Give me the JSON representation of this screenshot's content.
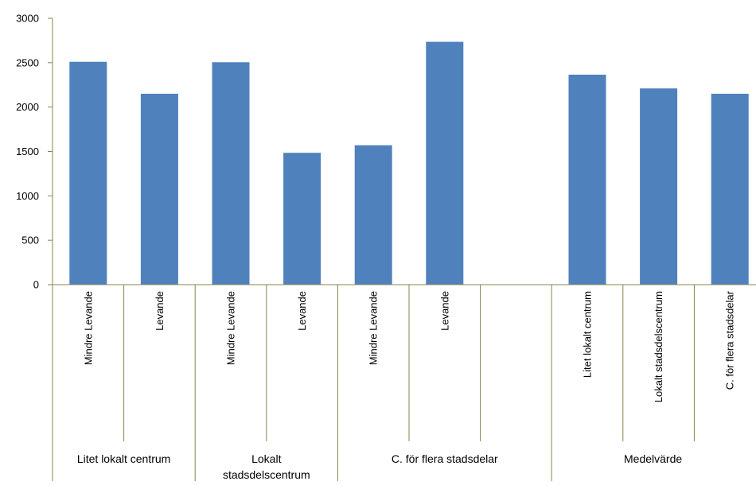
{
  "chart_data": {
    "type": "bar",
    "title": "",
    "xlabel": "",
    "ylabel": "",
    "ylim": [
      0,
      3000
    ],
    "yticks": [
      0,
      500,
      1000,
      1500,
      2000,
      2500,
      3000
    ],
    "grid": false,
    "legend": "none",
    "bar_color": "#4f81bd",
    "axis_color": "#8b8351",
    "categories": [
      "Mindre Levande",
      "Levande",
      "Mindre Levande",
      "Levande",
      "Mindre Levande",
      "Levande",
      "",
      "Litet lokalt centrum",
      "Lokalt stadsdelscentrum",
      "C. för flera stadsdelar"
    ],
    "values": [
      2510,
      2150,
      2505,
      1485,
      1570,
      2735,
      null,
      2365,
      2210,
      2150
    ],
    "groups": [
      {
        "label_lines": [
          "Litet lokalt centrum"
        ],
        "start": 0,
        "end": 2
      },
      {
        "label_lines": [
          "Lokalt",
          "stadsdelscentrum"
        ],
        "start": 2,
        "end": 4
      },
      {
        "label_lines": [
          "C. för flera stadsdelar"
        ],
        "start": 4,
        "end": 7
      },
      {
        "label_lines": [
          "Medelvärde"
        ],
        "start": 7,
        "end": 10
      }
    ]
  }
}
